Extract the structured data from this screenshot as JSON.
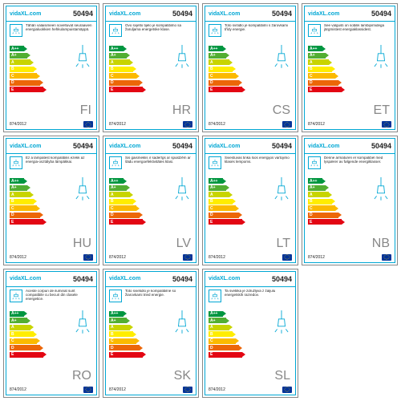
{
  "brand": "vidaXL.com",
  "product_id": "50494",
  "regulation": "874/2012",
  "energy_classes": [
    {
      "label": "A++",
      "color": "#009640",
      "width": 18
    },
    {
      "label": "A+",
      "color": "#52ae32",
      "width": 22
    },
    {
      "label": "A",
      "color": "#c8d400",
      "width": 26
    },
    {
      "label": "B",
      "color": "#ffed00",
      "width": 30
    },
    {
      "label": "C",
      "color": "#fbba00",
      "width": 34
    },
    {
      "label": "D",
      "color": "#ec6608",
      "width": 38
    },
    {
      "label": "E",
      "color": "#e30613",
      "width": 42
    }
  ],
  "cards": [
    {
      "lang": "FI",
      "desc": "Tähän valaisimeen soveltuvat seuraavien energialuokkien hehkulampuistamäppä."
    },
    {
      "lang": "HR",
      "desc": "Ovo svjetlo tijelo je kompatibilno sa žaruljama energetske klase."
    },
    {
      "lang": "CS",
      "desc": "Toto svítidlo je kompatibilní s žárovkami třídy energie."
    },
    {
      "lang": "ET",
      "desc": "See valgusti on sobilik lambipirnidega järgmistest energiaklassidest."
    },
    {
      "lang": "HU",
      "desc": "Ez a lámpatest kompatibilis ezekk az energia-osztályba lámpákkai."
    },
    {
      "lang": "LV",
      "desc": "Šis gaismeklis ir saderīgs ar spuldzēm ar šādu energoefektivitātes klasi."
    },
    {
      "lang": "LT",
      "desc": "Šviestuvas tinka šios energijos vartojimo klasės lempoms."
    },
    {
      "lang": "NB",
      "desc": "Denne armaturen er kompatibel med lyspærer av følgende energiklasser."
    },
    {
      "lang": "RO",
      "desc": "Aceste corpuri de iluminat sunt compatibile cu becuri din clasele energetice."
    },
    {
      "lang": "SK",
      "desc": "Toto svietidlo je kompatibilné so žiarovkami tried energie."
    },
    {
      "lang": "SL",
      "desc": "Ta svetilka je združljiva z žaljulu energetskih razredov."
    }
  ]
}
